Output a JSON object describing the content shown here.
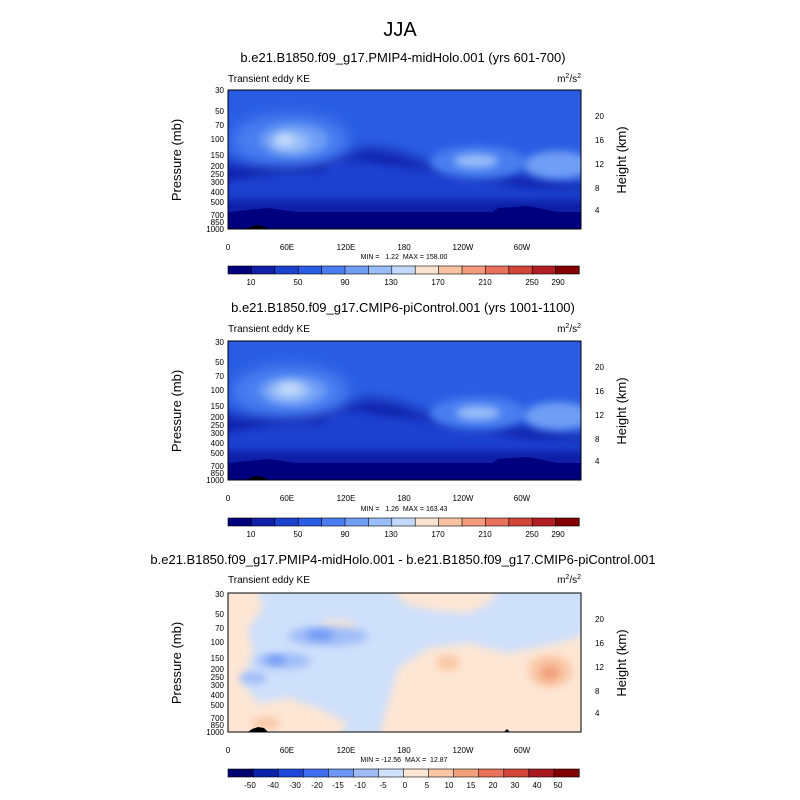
{
  "figure_title": "JJA",
  "chart_data": [
    {
      "type": "heatmap",
      "title": "b.e21.B1850.f09_g17.PMIP4-midHolo.001 (yrs 601-700)",
      "variable": "Transient eddy KE",
      "units_base": "m",
      "units_exp1": "2",
      "units_mid": "/s",
      "units_exp2": "2",
      "ylabel_left": "Pressure (mb)",
      "ylabel_right": "Height (km)",
      "x_ticks": [
        "0",
        "60E",
        "120E",
        "180",
        "120W",
        "60W"
      ],
      "y_ticks": [
        "30",
        "50",
        "70",
        "100",
        "150",
        "200",
        "250",
        "300",
        "400",
        "500",
        "700",
        "850",
        "1000"
      ],
      "height_ticks": [
        "4",
        "8",
        "12",
        "16",
        "20"
      ],
      "xlim": [
        0,
        360
      ],
      "ylim": [
        1000,
        30
      ],
      "stats": "MIN =   1.22  MAX = 158.00",
      "colorbar_labels": [
        "10",
        "50",
        "90",
        "130",
        "170",
        "210",
        "250",
        "290"
      ],
      "features": [
        {
          "lon": 60,
          "pressure": 100,
          "value": 158
        },
        {
          "lon": 245,
          "pressure": 180,
          "value": 115
        },
        {
          "lon": 330,
          "pressure": 200,
          "value": 95
        }
      ]
    },
    {
      "type": "heatmap",
      "title": "b.e21.B1850.f09_g17.CMIP6-piControl.001 (yrs 1001-1100)",
      "variable": "Transient eddy KE",
      "units_base": "m",
      "units_exp1": "2",
      "units_mid": "/s",
      "units_exp2": "2",
      "ylabel_left": "Pressure (mb)",
      "ylabel_right": "Height (km)",
      "x_ticks": [
        "0",
        "60E",
        "120E",
        "180",
        "120W",
        "60W"
      ],
      "y_ticks": [
        "30",
        "50",
        "70",
        "100",
        "150",
        "200",
        "250",
        "300",
        "400",
        "500",
        "700",
        "850",
        "1000"
      ],
      "height_ticks": [
        "4",
        "8",
        "12",
        "16",
        "20"
      ],
      "xlim": [
        0,
        360
      ],
      "ylim": [
        1000,
        30
      ],
      "stats": "MIN =   1.26  MAX = 163.43",
      "colorbar_labels": [
        "10",
        "50",
        "90",
        "130",
        "170",
        "210",
        "250",
        "290"
      ],
      "features": [
        {
          "lon": 60,
          "pressure": 100,
          "value": 163
        },
        {
          "lon": 245,
          "pressure": 190,
          "value": 120
        },
        {
          "lon": 330,
          "pressure": 200,
          "value": 95
        }
      ]
    },
    {
      "type": "heatmap",
      "title": "b.e21.B1850.f09_g17.PMIP4-midHolo.001 - b.e21.B1850.f09_g17.CMIP6-piControl.001",
      "variable": "Transient eddy KE",
      "units_base": "m",
      "units_exp1": "2",
      "units_mid": "/s",
      "units_exp2": "2",
      "ylabel_left": "Pressure (mb)",
      "ylabel_right": "Height (km)",
      "x_ticks": [
        "0",
        "60E",
        "120E",
        "180",
        "120W",
        "60W"
      ],
      "y_ticks": [
        "30",
        "50",
        "70",
        "100",
        "150",
        "200",
        "250",
        "300",
        "400",
        "500",
        "700",
        "850",
        "1000"
      ],
      "height_ticks": [
        "4",
        "8",
        "12",
        "16",
        "20"
      ],
      "xlim": [
        0,
        360
      ],
      "ylim": [
        1000,
        30
      ],
      "stats": "MIN = -12.56  MAX =  12.87",
      "colorbar_labels": [
        "-50",
        "-40",
        "-30",
        "-20",
        "-15",
        "-10",
        "-5",
        "0",
        "5",
        "10",
        "15",
        "20",
        "30",
        "40",
        "50"
      ],
      "features": [
        {
          "lon": 80,
          "pressure": 100,
          "value": -12.56
        },
        {
          "lon": 320,
          "pressure": 200,
          "value": 12.87
        },
        {
          "lon": 220,
          "pressure": 200,
          "value": 6
        }
      ]
    }
  ],
  "colors": {
    "seq_cmap": [
      "#00007f",
      "#0f1fa8",
      "#1e40cf",
      "#2b5de3",
      "#4a7ef0",
      "#6f9ef5",
      "#98bdf8",
      "#c3d9fb",
      "#fde4d2",
      "#f8c2a4",
      "#f29c7b",
      "#e8725a",
      "#d2463a",
      "#b01e23",
      "#800000"
    ],
    "div_cmap": [
      "#000070",
      "#0a22a8",
      "#1e46d8",
      "#3f6ef0",
      "#6c95f5",
      "#a0bdf8",
      "#cfe0fb",
      "#fde6d4",
      "#f9c7a6",
      "#f2a07b",
      "#e8725a",
      "#d2463a",
      "#a81920",
      "#7f0000"
    ],
    "terrain": "#000000"
  }
}
